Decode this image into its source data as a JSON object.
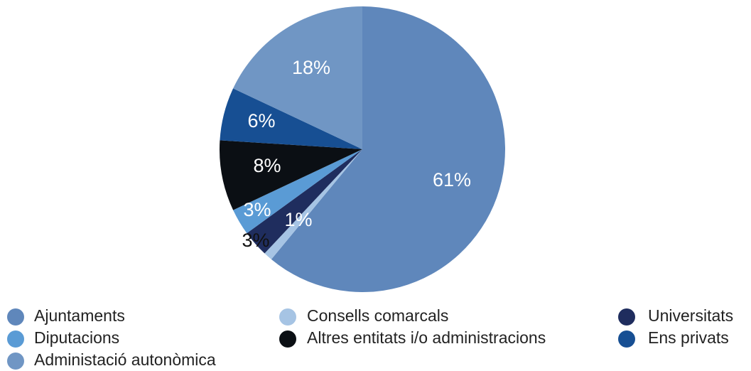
{
  "chart_data": {
    "type": "pie",
    "categories": [
      "Ajuntaments",
      "Consells comarcals",
      "Universitats",
      "Diputacions",
      "Altres entitats i/o administracions",
      "Ens privats",
      "Administació autonòmica"
    ],
    "values": [
      61,
      1,
      3,
      3,
      8,
      6,
      18
    ],
    "value_labels": [
      "61%",
      "1%",
      "3%",
      "3%",
      "8%",
      "6%",
      "18%"
    ],
    "colors": [
      "#5f87bb",
      "#a6c4e4",
      "#1f2d5e",
      "#5a9bd5",
      "#0b0f14",
      "#174f93",
      "#7096c4"
    ]
  }
}
